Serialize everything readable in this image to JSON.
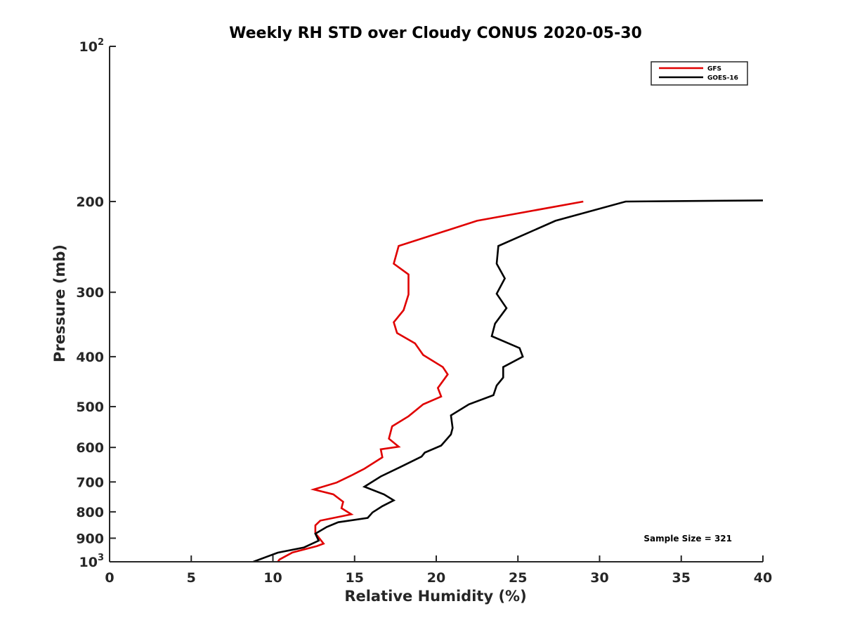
{
  "chart_data": {
    "type": "line",
    "title": "Weekly RH STD over Cloudy CONUS 2020-05-30",
    "xlabel": "Relative Humidity (%)",
    "ylabel": "Pressure (mb)",
    "xlim": [
      0,
      40
    ],
    "ylim": [
      100,
      1000
    ],
    "yscale": "log",
    "y_reversed": true,
    "x_ticks": [
      0,
      5,
      10,
      15,
      20,
      25,
      30,
      35,
      40
    ],
    "x_tick_labels": [
      "0",
      "5",
      "10",
      "15",
      "20",
      "25",
      "30",
      "35",
      "40"
    ],
    "y_ticks": [
      100,
      200,
      300,
      400,
      500,
      600,
      700,
      800,
      900,
      1000
    ],
    "y_tick_labels": [
      {
        "base": "10",
        "exp": "2"
      },
      {
        "base": "200"
      },
      {
        "base": "300"
      },
      {
        "base": "400"
      },
      {
        "base": "500"
      },
      {
        "base": "600"
      },
      {
        "base": "700"
      },
      {
        "base": "800"
      },
      {
        "base": "900"
      },
      {
        "base": "10",
        "exp": "3"
      }
    ],
    "legend_position": "top-right",
    "annotation": "Sample Size = 321",
    "series": [
      {
        "name": "GFS",
        "color": "#e00000",
        "points": [
          [
            29.0,
            200
          ],
          [
            22.5,
            218
          ],
          [
            17.7,
            244
          ],
          [
            17.4,
            264
          ],
          [
            18.3,
            277
          ],
          [
            18.3,
            303
          ],
          [
            18.0,
            325
          ],
          [
            17.4,
            343
          ],
          [
            17.6,
            360
          ],
          [
            18.7,
            377
          ],
          [
            19.2,
            397
          ],
          [
            20.4,
            419
          ],
          [
            20.7,
            433
          ],
          [
            20.1,
            460
          ],
          [
            20.3,
            478
          ],
          [
            19.2,
            495
          ],
          [
            18.3,
            522
          ],
          [
            17.3,
            546
          ],
          [
            17.1,
            577
          ],
          [
            17.7,
            598
          ],
          [
            16.6,
            605
          ],
          [
            16.7,
            627
          ],
          [
            15.6,
            660
          ],
          [
            14.8,
            680
          ],
          [
            13.9,
            702
          ],
          [
            12.5,
            724
          ],
          [
            13.7,
            740
          ],
          [
            14.3,
            765
          ],
          [
            14.2,
            787
          ],
          [
            14.8,
            809
          ],
          [
            12.9,
            832
          ],
          [
            12.6,
            850
          ],
          [
            12.6,
            880
          ],
          [
            13.1,
            922
          ],
          [
            12.7,
            932
          ],
          [
            11.2,
            959
          ],
          [
            10.4,
            990
          ],
          [
            10.3,
            1000
          ]
        ]
      },
      {
        "name": "GOES-16",
        "color": "#000000",
        "points": [
          [
            40.0,
            199
          ],
          [
            31.6,
            200
          ],
          [
            27.3,
            218
          ],
          [
            23.8,
            244
          ],
          [
            23.7,
            264
          ],
          [
            24.2,
            282
          ],
          [
            23.7,
            302
          ],
          [
            24.3,
            322
          ],
          [
            23.6,
            345
          ],
          [
            23.4,
            365
          ],
          [
            25.1,
            385
          ],
          [
            25.3,
            400
          ],
          [
            24.1,
            419
          ],
          [
            24.1,
            439
          ],
          [
            23.7,
            455
          ],
          [
            23.5,
            475
          ],
          [
            22.0,
            495
          ],
          [
            20.9,
            520
          ],
          [
            21.0,
            550
          ],
          [
            20.9,
            566
          ],
          [
            20.3,
            595
          ],
          [
            19.3,
            614
          ],
          [
            19.1,
            625
          ],
          [
            17.8,
            655
          ],
          [
            16.6,
            683
          ],
          [
            15.6,
            715
          ],
          [
            16.8,
            740
          ],
          [
            17.4,
            760
          ],
          [
            16.7,
            780
          ],
          [
            16.1,
            802
          ],
          [
            15.8,
            822
          ],
          [
            14.0,
            838
          ],
          [
            13.3,
            856
          ],
          [
            12.6,
            882
          ],
          [
            12.8,
            910
          ],
          [
            11.9,
            938
          ],
          [
            10.3,
            960
          ],
          [
            8.8,
            1000
          ]
        ]
      }
    ]
  }
}
